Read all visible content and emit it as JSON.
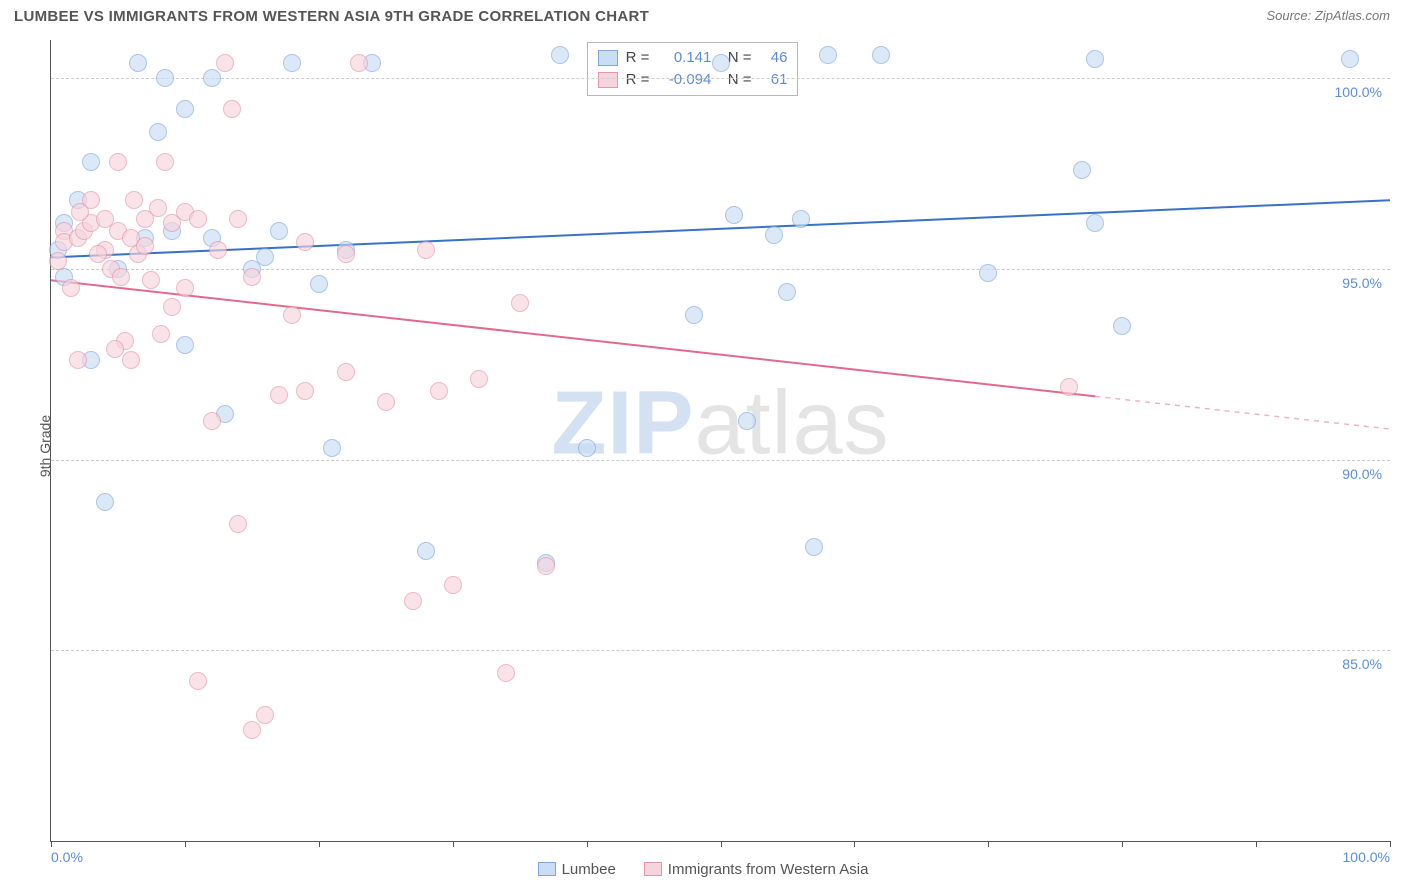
{
  "title": "LUMBEE VS IMMIGRANTS FROM WESTERN ASIA 9TH GRADE CORRELATION CHART",
  "source": "Source: ZipAtlas.com",
  "ylabel": "9th Grade",
  "watermark_z": "ZIP",
  "watermark_rest": "atlas",
  "chart": {
    "type": "scatter",
    "xlim": [
      0,
      100
    ],
    "ylim": [
      80,
      101
    ],
    "x_ticks": [
      0,
      10,
      20,
      30,
      40,
      50,
      60,
      70,
      80,
      90,
      100
    ],
    "x_tick_labels": {
      "0": "0.0%",
      "100": "100.0%"
    },
    "y_gridlines": [
      85,
      90,
      95,
      100
    ],
    "y_tick_labels": {
      "85": "85.0%",
      "90": "90.0%",
      "95": "95.0%",
      "100": "100.0%"
    },
    "grid_color": "#cccccc",
    "axis_color": "#555555",
    "tick_label_color": "#5b8dd6",
    "point_radius": 9,
    "background_color": "#ffffff"
  },
  "series": [
    {
      "name": "Lumbee",
      "fill": "#c9ddf4",
      "stroke": "#7fa8d9",
      "line_color": "#3772c4",
      "r": "0.141",
      "n": "46",
      "trend": {
        "x1": 0,
        "y1": 95.3,
        "x2": 100,
        "y2": 96.8,
        "dashed_after": null
      },
      "points": [
        [
          0.5,
          95.5
        ],
        [
          1,
          96.2
        ],
        [
          1,
          94.8
        ],
        [
          2,
          96.8
        ],
        [
          3,
          97.8
        ],
        [
          3,
          92.6
        ],
        [
          4,
          88.9
        ],
        [
          5,
          95.0
        ],
        [
          6.5,
          100.4
        ],
        [
          7,
          95.8
        ],
        [
          8,
          98.6
        ],
        [
          8.5,
          100.0
        ],
        [
          9,
          96.0
        ],
        [
          10,
          99.2
        ],
        [
          10,
          93.0
        ],
        [
          12,
          100.0
        ],
        [
          12,
          95.8
        ],
        [
          13,
          91.2
        ],
        [
          15,
          95.0
        ],
        [
          16,
          95.3
        ],
        [
          17,
          96.0
        ],
        [
          18,
          100.4
        ],
        [
          20,
          94.6
        ],
        [
          21,
          90.3
        ],
        [
          22,
          95.5
        ],
        [
          24,
          100.4
        ],
        [
          28,
          87.6
        ],
        [
          37,
          87.3
        ],
        [
          38,
          100.6
        ],
        [
          40,
          90.3
        ],
        [
          48,
          93.8
        ],
        [
          50,
          100.4
        ],
        [
          51,
          96.4
        ],
        [
          52,
          91.0
        ],
        [
          54,
          95.9
        ],
        [
          56,
          96.3
        ],
        [
          57,
          87.7
        ],
        [
          58,
          100.6
        ],
        [
          62,
          100.6
        ],
        [
          70,
          94.9
        ],
        [
          77,
          97.6
        ],
        [
          78,
          100.5
        ],
        [
          78,
          96.2
        ],
        [
          80,
          93.5
        ],
        [
          97,
          100.5
        ],
        [
          55,
          94.4
        ]
      ]
    },
    {
      "name": "Immigrants from Western Asia",
      "fill": "#f6d4dd",
      "stroke": "#e495aa",
      "line_color": "#e26a8d",
      "r": "-0.094",
      "n": "61",
      "trend": {
        "x1": 0,
        "y1": 94.7,
        "x2": 100,
        "y2": 90.8,
        "dashed_after": 78
      },
      "points": [
        [
          0.5,
          95.2
        ],
        [
          1,
          96.0
        ],
        [
          1,
          95.7
        ],
        [
          1.5,
          94.5
        ],
        [
          2,
          95.8
        ],
        [
          2,
          92.6
        ],
        [
          2.5,
          96.0
        ],
        [
          3,
          96.2
        ],
        [
          3,
          96.8
        ],
        [
          4,
          95.5
        ],
        [
          4,
          96.3
        ],
        [
          4.5,
          95.0
        ],
        [
          5,
          97.8
        ],
        [
          5,
          96.0
        ],
        [
          6,
          95.8
        ],
        [
          6,
          92.6
        ],
        [
          6.5,
          95.4
        ],
        [
          7,
          96.3
        ],
        [
          7,
          95.6
        ],
        [
          7.5,
          94.7
        ],
        [
          8,
          96.6
        ],
        [
          8.5,
          97.8
        ],
        [
          9,
          94.0
        ],
        [
          9,
          96.2
        ],
        [
          10,
          96.5
        ],
        [
          10,
          94.5
        ],
        [
          11,
          96.3
        ],
        [
          11,
          84.2
        ],
        [
          12,
          91.0
        ],
        [
          12.5,
          95.5
        ],
        [
          13,
          100.4
        ],
        [
          14,
          96.3
        ],
        [
          14,
          88.3
        ],
        [
          15,
          94.8
        ],
        [
          15,
          82.9
        ],
        [
          16,
          83.3
        ],
        [
          17,
          91.7
        ],
        [
          18,
          93.8
        ],
        [
          19,
          95.7
        ],
        [
          19,
          91.8
        ],
        [
          22,
          92.3
        ],
        [
          22,
          95.4
        ],
        [
          23,
          100.4
        ],
        [
          25,
          91.5
        ],
        [
          27,
          86.3
        ],
        [
          29,
          91.8
        ],
        [
          30,
          86.7
        ],
        [
          32,
          92.1
        ],
        [
          34,
          84.4
        ],
        [
          35,
          94.1
        ],
        [
          37,
          87.2
        ],
        [
          76,
          91.9
        ],
        [
          5.5,
          93.1
        ],
        [
          13.5,
          99.2
        ],
        [
          28,
          95.5
        ],
        [
          3.5,
          95.4
        ],
        [
          5.2,
          94.8
        ],
        [
          8.2,
          93.3
        ],
        [
          2.2,
          96.5
        ],
        [
          4.8,
          92.9
        ],
        [
          6.2,
          96.8
        ]
      ]
    }
  ],
  "legend_top": {
    "r_label": "R =",
    "n_label": "N ="
  },
  "bottom_legend": [
    {
      "label": "Lumbee",
      "fill": "#c9ddf4",
      "stroke": "#7fa8d9"
    },
    {
      "label": "Immigrants from Western Asia",
      "fill": "#f6d4dd",
      "stroke": "#e495aa"
    }
  ]
}
